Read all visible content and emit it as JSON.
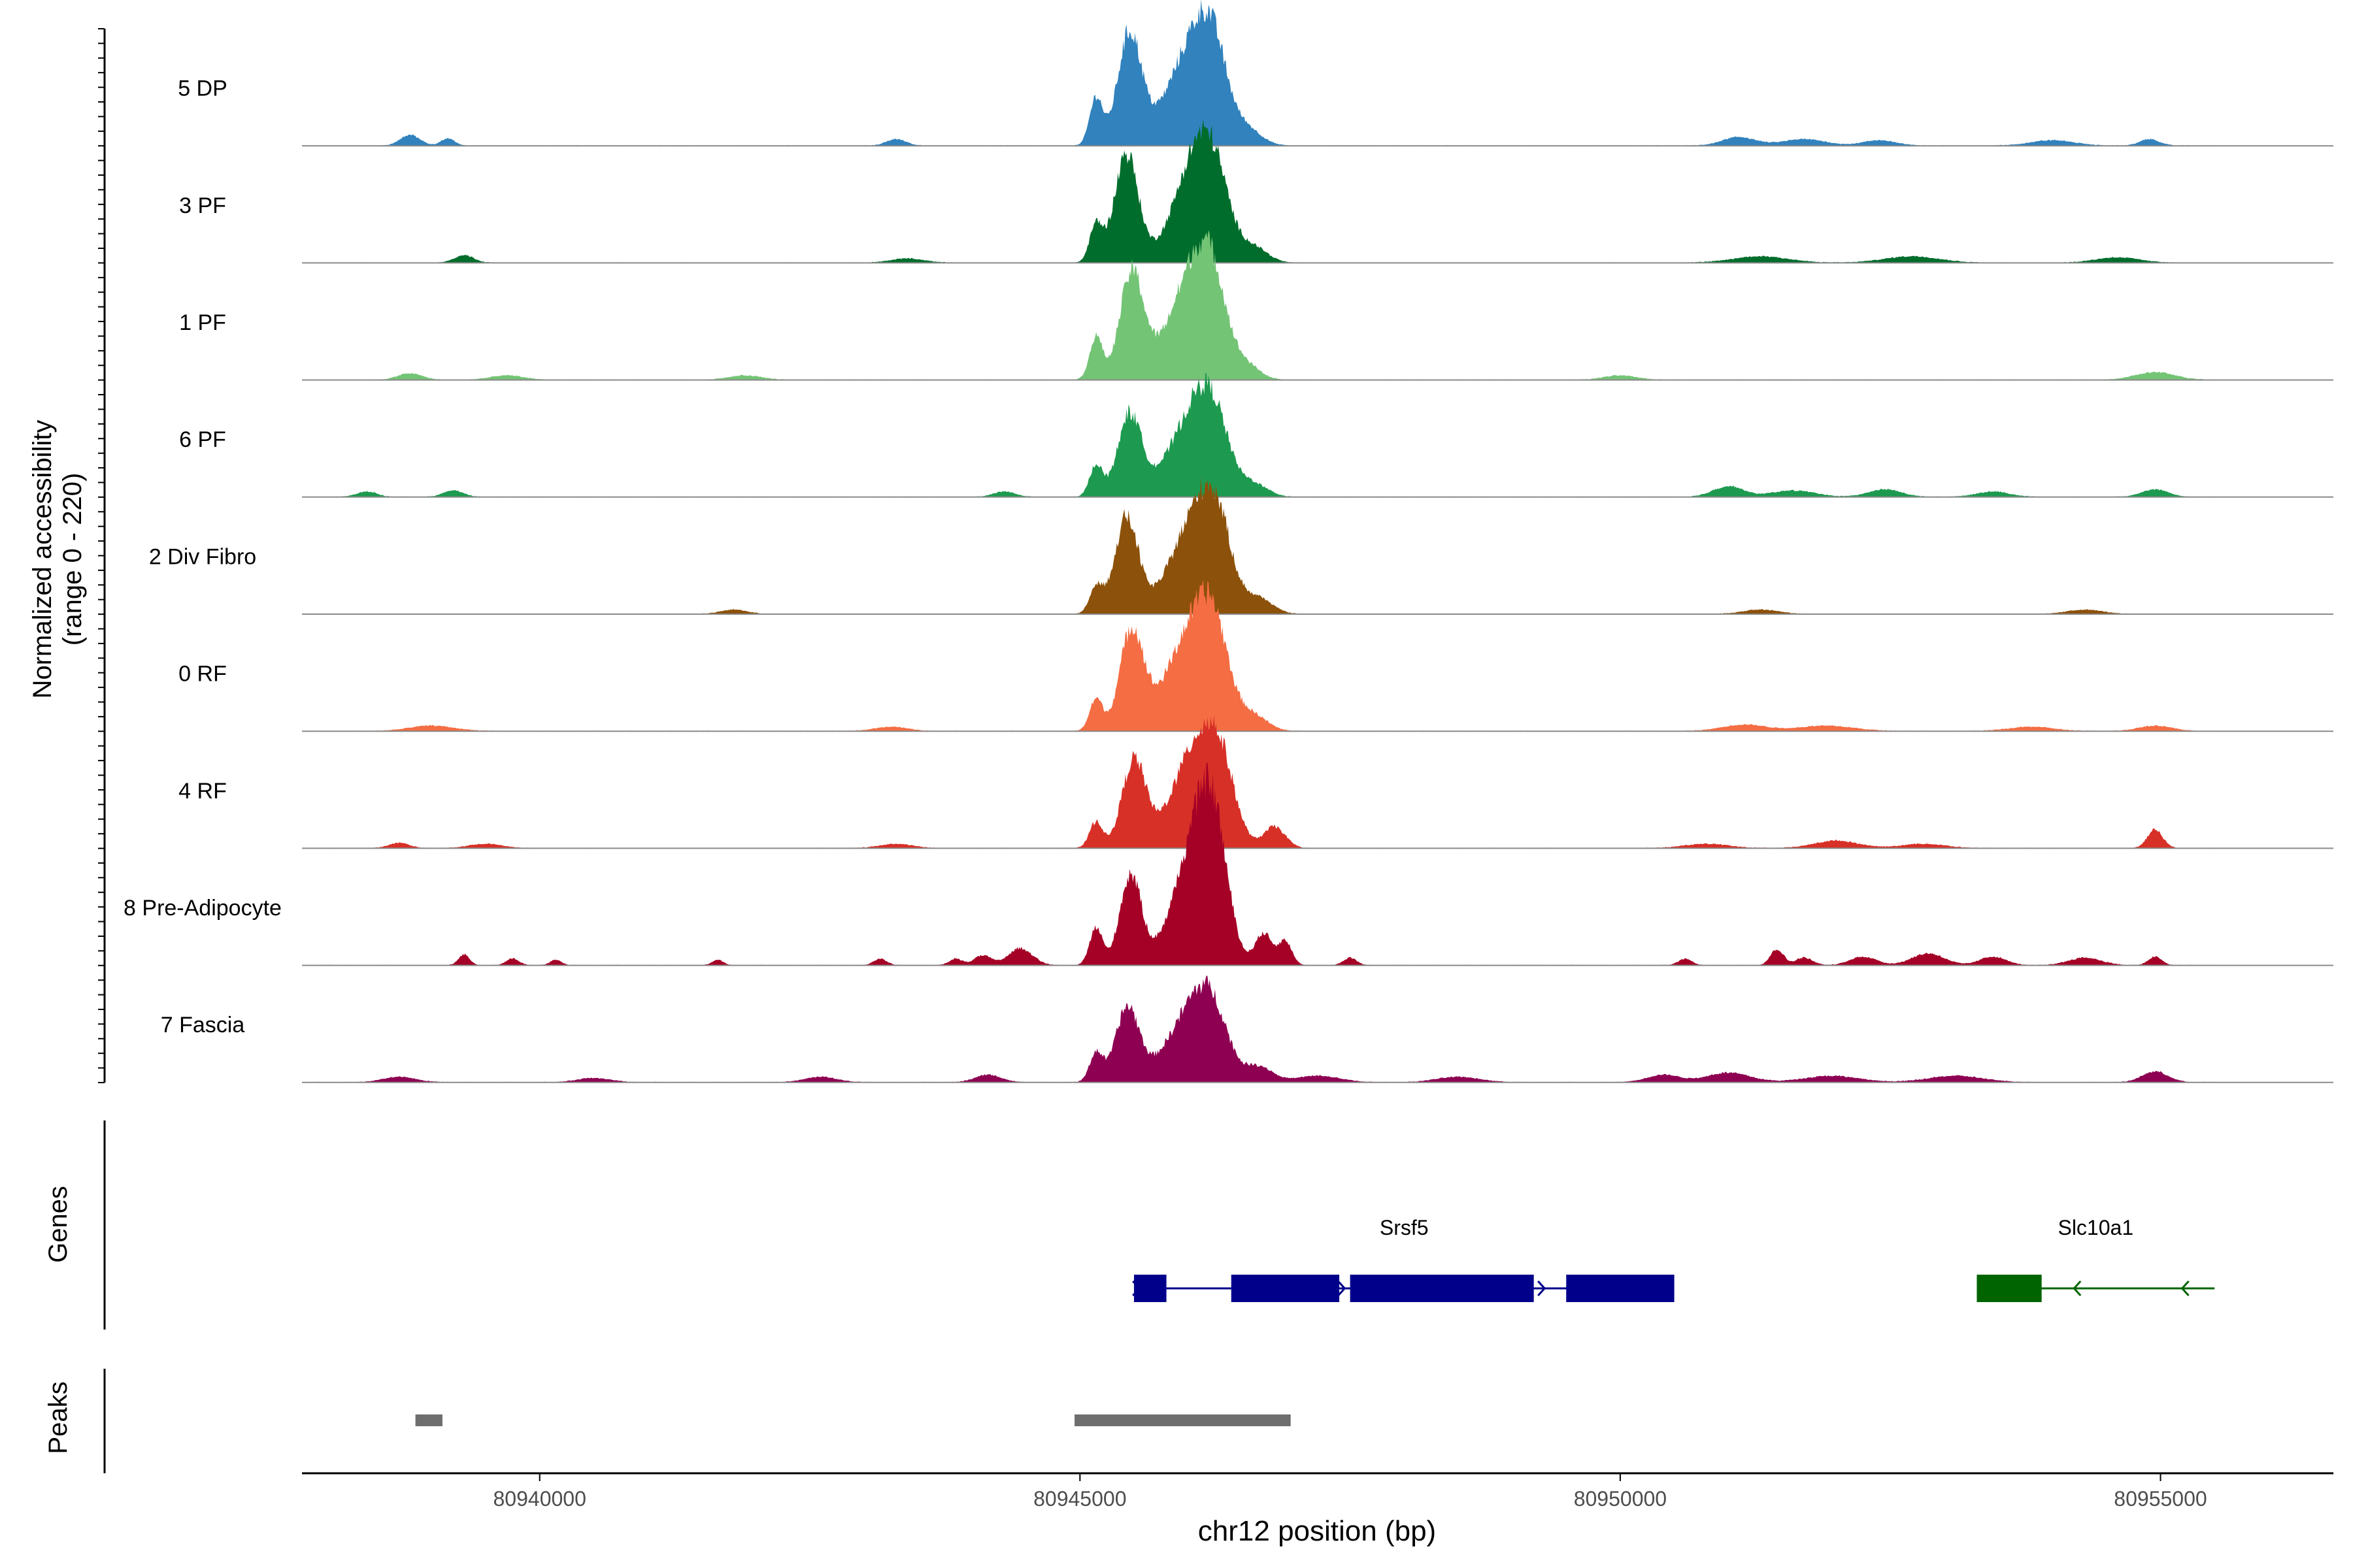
{
  "chart_data": {
    "type": "area",
    "title": "",
    "chromosome": "chr12",
    "xlabel": "chr12 position (bp)",
    "ylabel_line1": "Normalized accessibility",
    "ylabel_line2": "(range 0 - 220)",
    "y_range": [
      0,
      220
    ],
    "xlim": [
      80937800,
      80956600
    ],
    "x_ticks": [
      80940000,
      80945000,
      80950000,
      80955000
    ],
    "x_tick_labels": [
      "80940000",
      "80945000",
      "80950000",
      "80955000"
    ],
    "track_extent": [
      80937800,
      80955500
    ],
    "peak_centers": [
      80945450,
      80946200
    ],
    "tracks": [
      {
        "name": "5 DP",
        "color": "#3182bd",
        "peaks": [
          [
            80945150,
            90,
            60
          ],
          [
            80945460,
            210,
            110
          ],
          [
            80945850,
            70,
            180
          ],
          [
            80946050,
            120,
            160
          ],
          [
            80946230,
            165,
            140
          ],
          [
            80946550,
            30,
            130
          ]
        ],
        "small": [
          [
            80938800,
            20,
            90
          ],
          [
            80939150,
            14,
            60
          ],
          [
            80943300,
            12,
            90
          ],
          [
            80951100,
            16,
            150
          ],
          [
            80951700,
            12,
            200
          ],
          [
            80952400,
            10,
            150
          ],
          [
            80954000,
            10,
            200
          ],
          [
            80954900,
            12,
            90
          ]
        ]
      },
      {
        "name": "3 PF",
        "color": "#006d2c",
        "peaks": [
          [
            80945150,
            70,
            60
          ],
          [
            80945430,
            205,
            110
          ],
          [
            80945900,
            60,
            170
          ],
          [
            80946070,
            130,
            150
          ],
          [
            80946250,
            150,
            140
          ],
          [
            80946600,
            30,
            130
          ]
        ],
        "small": [
          [
            80939300,
            14,
            90
          ],
          [
            80943400,
            8,
            150
          ],
          [
            80951300,
            12,
            250
          ],
          [
            80952700,
            12,
            250
          ],
          [
            80954600,
            10,
            200
          ]
        ]
      },
      {
        "name": "1 PF",
        "color": "#74c476",
        "peaks": [
          [
            80945150,
            80,
            60
          ],
          [
            80945480,
            200,
            110
          ],
          [
            80945850,
            75,
            170
          ],
          [
            80946050,
            130,
            150
          ],
          [
            80946230,
            170,
            140
          ],
          [
            80946550,
            25,
            120
          ]
        ],
        "small": [
          [
            80938800,
            12,
            110
          ],
          [
            80939700,
            8,
            150
          ],
          [
            80941900,
            8,
            150
          ],
          [
            80950000,
            8,
            150
          ],
          [
            80954950,
            14,
            180
          ]
        ]
      },
      {
        "name": "6 PF",
        "color": "#1d9a4f",
        "peaks": [
          [
            80945150,
            60,
            60
          ],
          [
            80945460,
            155,
            110
          ],
          [
            80945850,
            60,
            170
          ],
          [
            80946070,
            115,
            150
          ],
          [
            80946250,
            130,
            140
          ],
          [
            80946600,
            25,
            130
          ]
        ],
        "small": [
          [
            80938400,
            10,
            90
          ],
          [
            80939200,
            12,
            90
          ],
          [
            80944300,
            10,
            100
          ],
          [
            80951000,
            20,
            140
          ],
          [
            80951600,
            12,
            200
          ],
          [
            80952450,
            14,
            150
          ],
          [
            80953450,
            10,
            150
          ],
          [
            80954950,
            14,
            120
          ]
        ]
      },
      {
        "name": "2 Div Fibro",
        "color": "#8c510a",
        "peaks": [
          [
            80945150,
            50,
            60
          ],
          [
            80945430,
            180,
            110
          ],
          [
            80945850,
            55,
            170
          ],
          [
            80946070,
            135,
            160
          ],
          [
            80946270,
            160,
            140
          ],
          [
            80946650,
            30,
            130
          ]
        ],
        "small": [
          [
            80941800,
            8,
            120
          ],
          [
            80951300,
            8,
            160
          ],
          [
            80954300,
            8,
            160
          ]
        ]
      },
      {
        "name": "0 RF",
        "color": "#f46d43",
        "peaks": [
          [
            80945150,
            60,
            60
          ],
          [
            80945480,
            190,
            110
          ],
          [
            80945850,
            80,
            170
          ],
          [
            80946070,
            135,
            160
          ],
          [
            80946250,
            160,
            140
          ],
          [
            80946600,
            30,
            130
          ]
        ],
        "small": [
          [
            80939000,
            10,
            200
          ],
          [
            80943250,
            8,
            150
          ],
          [
            80951150,
            12,
            200
          ],
          [
            80951900,
            10,
            250
          ],
          [
            80953800,
            8,
            200
          ],
          [
            80954950,
            10,
            150
          ]
        ]
      },
      {
        "name": "4 RF",
        "color": "#d73027",
        "peaks": [
          [
            80945150,
            50,
            60
          ],
          [
            80945500,
            165,
            110
          ],
          [
            80945900,
            70,
            170
          ],
          [
            80946100,
            135,
            160
          ],
          [
            80946300,
            145,
            140
          ],
          [
            80946800,
            40,
            100
          ]
        ],
        "small": [
          [
            80938700,
            10,
            90
          ],
          [
            80939500,
            8,
            150
          ],
          [
            80943300,
            8,
            150
          ],
          [
            80950800,
            8,
            200
          ],
          [
            80952000,
            14,
            200
          ],
          [
            80952800,
            8,
            200
          ],
          [
            80954950,
            35,
            70
          ]
        ]
      },
      {
        "name": "8 Pre-Adipocyte",
        "color": "#a50026",
        "peaks": [
          [
            80945150,
            70,
            60
          ],
          [
            80945470,
            170,
            100
          ],
          [
            80945900,
            80,
            160
          ],
          [
            80946100,
            180,
            150
          ],
          [
            80946250,
            200,
            130
          ],
          [
            80946700,
            60,
            80
          ],
          [
            80946900,
            45,
            60
          ]
        ],
        "small": [
          [
            80939300,
            20,
            50
          ],
          [
            80939750,
            12,
            60
          ],
          [
            80940150,
            10,
            50
          ],
          [
            80941650,
            10,
            50
          ],
          [
            80943150,
            12,
            60
          ],
          [
            80943850,
            12,
            60
          ],
          [
            80944450,
            32,
            110
          ],
          [
            80944100,
            18,
            80
          ],
          [
            80947500,
            14,
            60
          ],
          [
            80950600,
            12,
            60
          ],
          [
            80951450,
            30,
            60
          ],
          [
            80951700,
            14,
            80
          ],
          [
            80952250,
            16,
            120
          ],
          [
            80952850,
            22,
            150
          ],
          [
            80953450,
            16,
            120
          ],
          [
            80954300,
            14,
            150
          ],
          [
            80954950,
            16,
            60
          ]
        ]
      },
      {
        "name": "7 Fascia",
        "color": "#8e0152",
        "peaks": [
          [
            80945150,
            55,
            60
          ],
          [
            80945440,
            140,
            110
          ],
          [
            80945850,
            60,
            170
          ],
          [
            80946070,
            100,
            150
          ],
          [
            80946250,
            110,
            140
          ],
          [
            80946650,
            30,
            130
          ]
        ],
        "small": [
          [
            80938700,
            10,
            150
          ],
          [
            80940500,
            8,
            150
          ],
          [
            80942600,
            10,
            150
          ],
          [
            80944150,
            14,
            120
          ],
          [
            80947200,
            12,
            200
          ],
          [
            80948500,
            10,
            200
          ],
          [
            80950400,
            14,
            150
          ],
          [
            80951000,
            18,
            200
          ],
          [
            80951950,
            12,
            250
          ],
          [
            80953100,
            12,
            250
          ],
          [
            80954950,
            20,
            120
          ]
        ]
      }
    ],
    "genes_label": "Genes",
    "genes": [
      {
        "name": "Srsf5",
        "color": "#00008b",
        "strand": "+",
        "start": 80945500,
        "end": 80950500,
        "exons": [
          [
            80945500,
            80945800
          ],
          [
            80946400,
            80947400
          ],
          [
            80947500,
            80949200
          ],
          [
            80949500,
            80950500
          ]
        ],
        "arrows": [
          80945550,
          80947450,
          80949300
        ]
      },
      {
        "name": "Slc10a1",
        "color": "#006400",
        "strand": "-",
        "start": 80953300,
        "end": 80955500,
        "exons": [
          [
            80953300,
            80953900
          ]
        ],
        "arrows": [
          80954200,
          80955200
        ]
      }
    ],
    "peaks_label": "Peaks",
    "peak_regions": [
      [
        80938850,
        80939100
      ],
      [
        80944950,
        80946950
      ]
    ]
  }
}
